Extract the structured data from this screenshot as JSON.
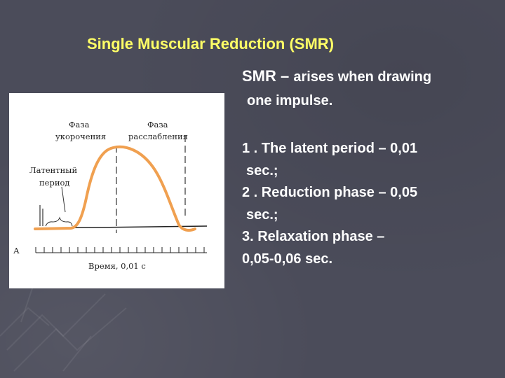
{
  "slide": {
    "title": "Single Muscular Reduction (SMR)",
    "definition": {
      "abbr": "SMR",
      "dash": " – ",
      "line1": "arises when drawing",
      "line2": "one impulse."
    },
    "phases": [
      {
        "line1": "1 . The latent period – 0,01",
        "line2": "sec.;"
      },
      {
        "line1": "2 . Reduction phase – 0,05",
        "line2": "sec.;"
      },
      {
        "line1": "3. Relaxation phase –",
        "line2": "0,05-0,06 sec."
      }
    ]
  },
  "figure": {
    "labels": {
      "shortening_1": "Фаза",
      "shortening_2": "укорочения",
      "relaxation_1": "Фаза",
      "relaxation_2": "расслабления",
      "latent_1": "Латентный",
      "latent_2": "период",
      "axis": "Время, 0,01 с",
      "left_mark": "А"
    },
    "colors": {
      "curve": "#f0a050",
      "title": "#ffff66",
      "background": "#4b4c5a"
    }
  }
}
